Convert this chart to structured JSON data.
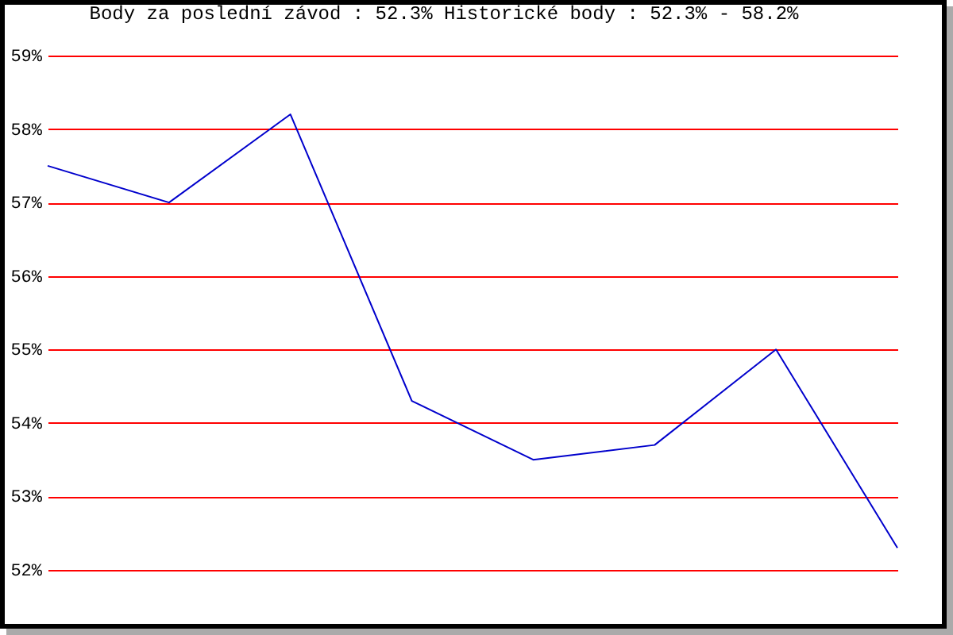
{
  "chart_data": {
    "type": "line",
    "title": "Body za poslední závod : 52.3%  Historické body : 52.3% - 58.2%",
    "categories": [
      null,
      null,
      null,
      null,
      null,
      null,
      null,
      null
    ],
    "series": [
      {
        "color": "#0000cc",
        "values": [
          57.5,
          57.0,
          58.2,
          54.3,
          53.5,
          53.7,
          55.0,
          52.3
        ]
      }
    ],
    "ylim": [
      52,
      59
    ],
    "yticks": [
      {
        "value": 52,
        "label": "52%"
      },
      {
        "value": 53,
        "label": "53%"
      },
      {
        "value": 54,
        "label": "54%"
      },
      {
        "value": 55,
        "label": "55%"
      },
      {
        "value": 56,
        "label": "56%"
      },
      {
        "value": 57,
        "label": "57%"
      },
      {
        "value": 58,
        "label": "58%"
      },
      {
        "value": 59,
        "label": "59%"
      }
    ],
    "grid": "y",
    "tick_labels": "y",
    "marker": "none",
    "line_style": "solid"
  }
}
